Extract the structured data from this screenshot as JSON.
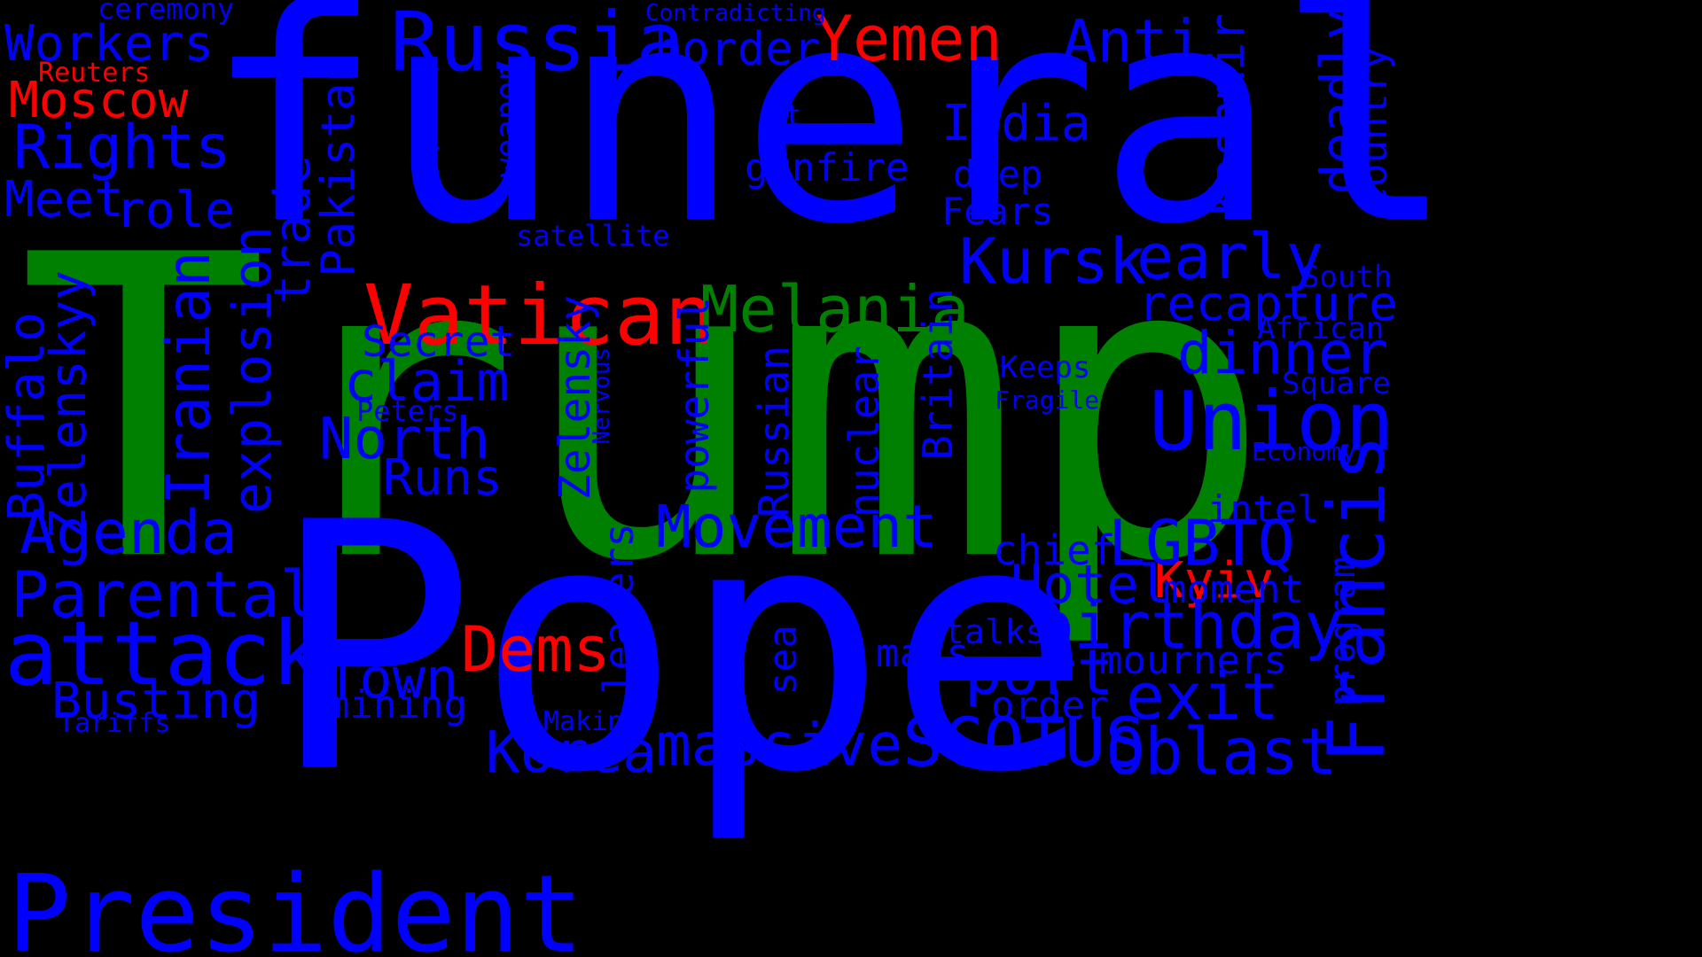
{
  "colors": {
    "background": "#000000",
    "blue": "#0000ff",
    "red": "#ff0000",
    "green": "#008000"
  },
  "words": {
    "trump": "Trump",
    "funeral": "funeral",
    "pope": "Pope",
    "president": "President",
    "vatican": "Vatican",
    "melania": "Melania",
    "russia": "Russia",
    "francis": "Francis",
    "union": "Union",
    "attack": "attack",
    "kursk": "Kursk",
    "early": "early",
    "yemen": "Yemen",
    "anti": "Anti",
    "india": "India",
    "border": "border",
    "rights": "Rights",
    "meet": "Meet",
    "role": "role",
    "workers": "Workers",
    "moscow": "Moscow",
    "reuters": "Reuters",
    "ceremony": "ceremony",
    "contradicting": "Contradicting",
    "pakistan": "Pakistan",
    "trade": "trade",
    "explosion": "explosion",
    "iranian": "Iranian",
    "zelenskyy": "Zelenskyy",
    "buffalo": "Buffalo",
    "agenda": "Agenda",
    "parental": "Parental",
    "busting": "Busting",
    "tariffs": "Tariffs",
    "respects": "respects",
    "weapon": "weapon",
    "satellite": "satellite",
    "st": "St",
    "gunfire": "gunfire",
    "deep": "deep",
    "fears": "Fears",
    "kashmir": "Kashmir",
    "deadly": "deadly",
    "country": "country",
    "south": "South",
    "african": "African",
    "square": "Square",
    "recapture": "recapture",
    "dinner": "dinner",
    "keeps": "Keeps",
    "fragile": "Fragile",
    "economy": "Economy",
    "kyiv": "Kyiv",
    "intel": "intel",
    "lgbtq": "LGBTQ",
    "chief": "chief",
    "hotel": "Hotel",
    "moment": "moment",
    "program": "program",
    "birthday": "birthday",
    "mourners": "mourners",
    "talks": "talks",
    "mass": "mass",
    "port": "port",
    "exit": "exit",
    "order": "order",
    "oblast": "Oblast",
    "scotus": "SCOTUS",
    "massive": "massive",
    "korea": "Korea",
    "making": "Making",
    "movement": "Movement",
    "dems": "Dems",
    "town": "Town",
    "mining": "mining",
    "runs": "Runs",
    "north": "North",
    "claim": "claim",
    "secret": "Secret",
    "peters": "Peters",
    "zelensky": "Zelensky",
    "nervous": "Nervous",
    "powerful": "powerful",
    "russian": "Russian",
    "nuclear": "nuclear",
    "britain": "Britain",
    "leaders": "leaders",
    "sea": "sea"
  }
}
